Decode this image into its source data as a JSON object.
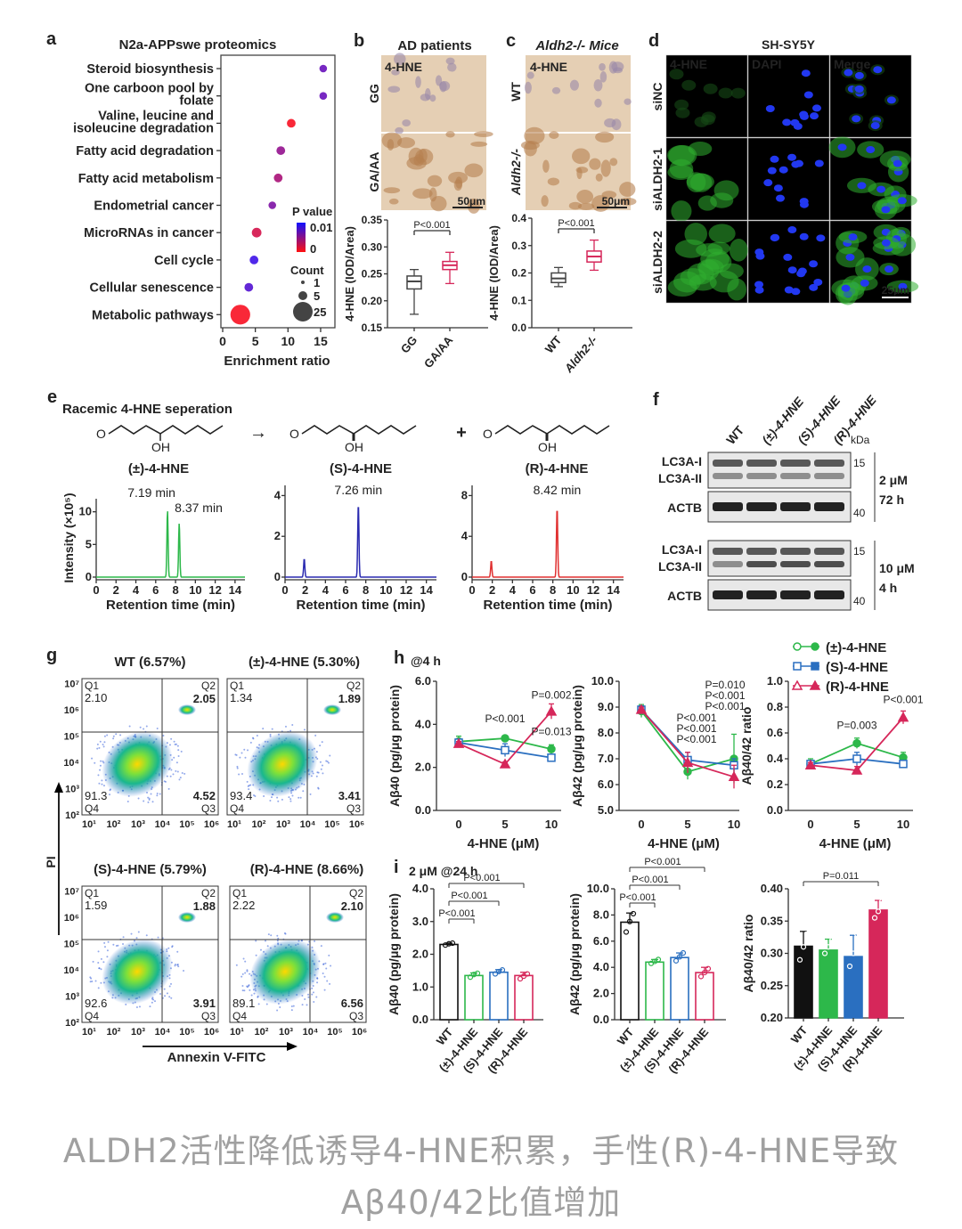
{
  "panel_letters": {
    "a": "a",
    "b": "b",
    "c": "c",
    "d": "d",
    "e": "e",
    "f": "f",
    "g": "g",
    "h": "h",
    "i": "i"
  },
  "panel_a": {
    "title": "N2a-APPswe proteomics",
    "legend_p_title": "P value",
    "legend_p_hi": "0.01",
    "legend_p_lo": "0",
    "legend_count_title": "Count",
    "legend_counts": [
      "1",
      "5",
      "25"
    ]
  },
  "panel_b": {
    "title": "AD patients",
    "stain": "4-HNE",
    "row_labels": [
      "GG",
      "GA/AA"
    ],
    "scale": "50μm"
  },
  "panel_c": {
    "title": "Aldh2-/- Mice",
    "stain": "4-HNE",
    "row_labels": [
      "WT",
      "Aldh2-/-"
    ],
    "scale": "50μm"
  },
  "panel_d": {
    "title": "SH-SY5Y",
    "columns": [
      "4-HNE",
      "DAPI",
      "Merge"
    ],
    "rows": [
      "siNC",
      "siALDH2-1",
      "siALDH2-2"
    ],
    "scale": "25μm",
    "column_colors": [
      "#22ee22",
      "#3355ff",
      "#ffffff"
    ]
  },
  "panel_e": {
    "title": "Racemic 4-HNE seperation",
    "arrow": "→",
    "plus": "+",
    "atom_o": "O",
    "atom_oh": "OH"
  },
  "panel_f": {
    "lanes": [
      "WT",
      "(±)-4-HNE",
      "(S)-4-HNE",
      "(R)-4-HNE"
    ],
    "kda": "kDa",
    "blocks": [
      {
        "bands": [
          "LC3A-I",
          "LC3A-II"
        ],
        "ctrl": "ACTB",
        "mw": [
          "15",
          "40"
        ],
        "dose": "2 μM",
        "time": "72 h"
      },
      {
        "bands": [
          "LC3A-I",
          "LC3A-II"
        ],
        "ctrl": "ACTB",
        "mw": [
          "15",
          "40"
        ],
        "dose": "10 μM",
        "time": "4 h"
      }
    ]
  },
  "panel_g": {
    "ylabel": "PI",
    "xlabel": "Annexin V-FITC",
    "xticks": [
      "10¹",
      "10²",
      "10³",
      "10⁴",
      "10⁵",
      "10⁶"
    ],
    "yticks": [
      "10²",
      "10³",
      "10⁴",
      "10⁵",
      "10⁶",
      "10⁷"
    ],
    "plots": [
      {
        "title": "WT (6.57%)",
        "q1": "2.10",
        "q2": "2.05",
        "q3": "4.52",
        "q4": "91.3"
      },
      {
        "title": "(±)-4-HNE (5.30%)",
        "q1": "1.34",
        "q2": "1.89",
        "q3": "3.41",
        "q4": "93.4"
      },
      {
        "title": "(S)-4-HNE (5.79%)",
        "q1": "1.59",
        "q2": "1.88",
        "q3": "3.91",
        "q4": "92.6"
      },
      {
        "title": "(R)-4-HNE (8.66%)",
        "q1": "2.22",
        "q2": "2.10",
        "q3": "6.56",
        "q4": "89.1"
      }
    ],
    "quadrant_names": [
      "Q1",
      "Q2",
      "Q3",
      "Q4"
    ]
  },
  "panel_h": {
    "subtitle": "@4 h",
    "legend": [
      "(±)-4-HNE",
      "(S)-4-HNE",
      "(R)-4-HNE"
    ]
  },
  "panel_i": {
    "subtitle": "2 μM @24 h"
  },
  "colors": {
    "racemic": "#2db84a",
    "S": "#2a6fc0",
    "R": "#d6275a",
    "black": "#111111",
    "red_text": "#e01010"
  },
  "caption": {
    "line1": "ALDH2活性降低诱导4-HNE积累，手性(R)-4-HNE导致",
    "line2": "Aβ40/42比值增加"
  },
  "chart_data": [
    {
      "id": "a",
      "type": "scatter",
      "title": "N2a-APPswe proteomics",
      "xlabel": "Enrichment ratio",
      "xlim": [
        0,
        17
      ],
      "xticks": [
        0,
        5,
        10,
        15
      ],
      "categories": [
        "Steroid biosynthesis",
        "One carboon pool by folate",
        "Valine, leucine and isoleucine degradation",
        "Fatty acid degradation",
        "Fatty acid metabolism",
        "Endometrial cancer",
        "MicroRNAs in cancer",
        "Cell cycle",
        "Cellular senescence",
        "Metabolic pathways"
      ],
      "enrichment": [
        15.4,
        15.4,
        10.5,
        8.9,
        8.5,
        7.6,
        5.2,
        4.8,
        4.0,
        2.7
      ],
      "p_value": [
        0.007,
        0.007,
        0.0003,
        0.005,
        0.004,
        0.006,
        0.002,
        0.009,
        0.008,
        0.0003
      ],
      "count": [
        2,
        2,
        3,
        3,
        3,
        2,
        4,
        3,
        3,
        25
      ]
    },
    {
      "id": "b",
      "type": "box",
      "ylabel": "4-HNE (IOD/Area)",
      "ylim": [
        0.15,
        0.35
      ],
      "yticks": [
        "0.15",
        "0.20",
        "0.25",
        "0.30",
        "0.35"
      ],
      "annotation": "P<0.001",
      "categories": [
        "GG",
        "GA/AA"
      ],
      "colors": [
        "#444444",
        "#d6275a"
      ],
      "boxes": [
        {
          "min": 0.175,
          "q1": 0.222,
          "median": 0.236,
          "q3": 0.246,
          "max": 0.258
        },
        {
          "min": 0.232,
          "q1": 0.258,
          "median": 0.266,
          "q3": 0.273,
          "max": 0.29
        }
      ]
    },
    {
      "id": "c",
      "type": "box",
      "ylabel": "4-HNE (IOD/Area)",
      "ylim": [
        0,
        0.4
      ],
      "yticks": [
        "0.0",
        "0.1",
        "0.2",
        "0.3",
        "0.4"
      ],
      "annotation": "P<0.001",
      "categories": [
        "WT",
        "Aldh2-/-"
      ],
      "colors": [
        "#444444",
        "#d6275a"
      ],
      "boxes": [
        {
          "min": 0.15,
          "q1": 0.165,
          "median": 0.18,
          "q3": 0.2,
          "max": 0.22
        },
        {
          "min": 0.21,
          "q1": 0.24,
          "median": 0.26,
          "q3": 0.28,
          "max": 0.32
        }
      ]
    },
    {
      "id": "e1",
      "type": "line",
      "name": "(±)-4-HNE",
      "xlabel": "Retention time (min)",
      "ylabel": "Intensity (×10⁵)",
      "xlim": [
        0,
        15
      ],
      "ylim": [
        0,
        12
      ],
      "xticks": [
        0,
        2,
        4,
        6,
        8,
        10,
        12,
        14
      ],
      "yticks": [
        0,
        5,
        10
      ],
      "peaks": [
        {
          "t": 7.19,
          "h": 10.2,
          "label": "7.19 min"
        },
        {
          "t": 8.37,
          "h": 8.3,
          "label": "8.37 min"
        }
      ],
      "color": "#2db84a"
    },
    {
      "id": "e2",
      "type": "line",
      "name": "(S)-4-HNE",
      "xlabel": "Retention time (min)",
      "xlim": [
        0,
        15
      ],
      "ylim": [
        0,
        4.5
      ],
      "xticks": [
        0,
        2,
        4,
        6,
        8,
        10,
        12,
        14
      ],
      "yticks": [
        0,
        2,
        4
      ],
      "peaks": [
        {
          "t": 1.9,
          "h": 0.9,
          "label": ""
        },
        {
          "t": 7.26,
          "h": 3.6,
          "label": "7.26 min"
        }
      ],
      "color": "#2a2ab0"
    },
    {
      "id": "e3",
      "type": "line",
      "name": "(R)-4-HNE",
      "xlabel": "Retention time (min)",
      "xlim": [
        0,
        15
      ],
      "ylim": [
        0,
        9
      ],
      "xticks": [
        0,
        2,
        4,
        6,
        8,
        10,
        12,
        14
      ],
      "yticks": [
        0,
        4,
        8
      ],
      "peaks": [
        {
          "t": 1.9,
          "h": 1.6,
          "label": ""
        },
        {
          "t": 8.42,
          "h": 6.8,
          "label": "8.42 min"
        }
      ],
      "color": "#e03030"
    },
    {
      "id": "h1",
      "type": "line",
      "ylabel": "Aβ40 (pg/μg protein)",
      "xlabel": "4-HNE (μM)",
      "x": [
        0,
        5,
        10
      ],
      "ylim": [
        0,
        6
      ],
      "yticks": [
        "0.0",
        "2.0",
        "4.0",
        "6.0"
      ],
      "series": [
        {
          "name": "(±)-4-HNE",
          "values": [
            3.2,
            3.35,
            2.85
          ],
          "err": [
            0.25,
            0.08,
            0.2
          ]
        },
        {
          "name": "(S)-4-HNE",
          "values": [
            3.15,
            2.8,
            2.45
          ],
          "err": [
            0.15,
            0.3,
            0.12
          ]
        },
        {
          "name": "(R)-4-HNE",
          "values": [
            3.1,
            2.15,
            4.6
          ],
          "err": [
            0.1,
            0.1,
            0.35
          ]
        }
      ],
      "annotations": [
        {
          "text": "P<0.001",
          "series": 2,
          "xi": 1,
          "dy": 4.1
        },
        {
          "text": "P=0.002",
          "series": 2,
          "xi": 2,
          "dy": 5.2
        },
        {
          "text": "P=0.013",
          "series": 1,
          "xi": 2,
          "dy": 3.5
        }
      ]
    },
    {
      "id": "h2",
      "type": "line",
      "ylabel": "Aβ42 (pg/μg protein)",
      "xlabel": "4-HNE (μM)",
      "x": [
        0,
        5,
        10
      ],
      "ylim": [
        5,
        10
      ],
      "yticks": [
        "5.0",
        "6.0",
        "7.0",
        "8.0",
        "9.0",
        "10.0"
      ],
      "series": [
        {
          "name": "(±)-4-HNE",
          "values": [
            8.85,
            6.5,
            7.0
          ],
          "err": [
            0.25,
            0.3,
            0.95
          ]
        },
        {
          "name": "(S)-4-HNE",
          "values": [
            8.9,
            6.95,
            6.75
          ],
          "err": [
            0.15,
            0.3,
            0.25
          ]
        },
        {
          "name": "(R)-4-HNE",
          "values": [
            8.9,
            6.85,
            6.3
          ],
          "err": [
            0.1,
            0.4,
            0.45
          ]
        }
      ],
      "annotations_stack": [
        [
          "P<0.001",
          "P<0.001",
          "P<0.001"
        ],
        [
          "P<0.001",
          "P<0.001",
          "P=0.010"
        ]
      ]
    },
    {
      "id": "h3",
      "type": "line",
      "ylabel": "Aβ40/42 ratio",
      "xlabel": "4-HNE (μM)",
      "x": [
        0,
        5,
        10
      ],
      "ylim": [
        0,
        1
      ],
      "yticks": [
        "0.0",
        "0.2",
        "0.4",
        "0.6",
        "0.8",
        "1.0"
      ],
      "series": [
        {
          "name": "(±)-4-HNE",
          "values": [
            0.36,
            0.52,
            0.41
          ],
          "err": [
            0.04,
            0.04,
            0.04
          ]
        },
        {
          "name": "(S)-4-HNE",
          "values": [
            0.36,
            0.4,
            0.36
          ],
          "err": [
            0.02,
            0.05,
            0.02
          ]
        },
        {
          "name": "(R)-4-HNE",
          "values": [
            0.35,
            0.31,
            0.72
          ],
          "err": [
            0.02,
            0.03,
            0.05
          ]
        }
      ],
      "annotations": [
        {
          "text": "P=0.003",
          "series": 0,
          "xi": 1,
          "dy": 0.63
        },
        {
          "text": "P<0.001",
          "series": 2,
          "xi": 2,
          "dy": 0.83
        }
      ]
    },
    {
      "id": "i1",
      "type": "bar",
      "ylabel": "Aβ40 (pg/μg protein)",
      "categories": [
        "WT",
        "(±)-4-HNE",
        "(S)-4-HNE",
        "(R)-4-HNE"
      ],
      "values": [
        2.3,
        1.35,
        1.45,
        1.35
      ],
      "err": [
        0.04,
        0.08,
        0.08,
        0.1
      ],
      "points": [
        [
          2.28,
          2.32,
          2.34
        ],
        [
          1.3,
          1.38,
          1.42
        ],
        [
          1.4,
          1.47,
          1.52
        ],
        [
          1.25,
          1.33,
          1.4
        ]
      ],
      "ylim": [
        0,
        4
      ],
      "yticks": [
        "0.0",
        "1.0",
        "2.0",
        "3.0",
        "4.0"
      ],
      "filled": false,
      "brackets": [
        {
          "to": 1,
          "text": "P<0.001"
        },
        {
          "to": 2,
          "text": "P<0.001"
        },
        {
          "to": 3,
          "text": "P<0.001"
        }
      ]
    },
    {
      "id": "i2",
      "type": "bar",
      "ylabel": "Aβ42 (pg/μg protein)",
      "categories": [
        "WT",
        "(±)-4-HNE",
        "(S)-4-HNE",
        "(R)-4-HNE"
      ],
      "values": [
        7.45,
        4.4,
        4.75,
        3.6
      ],
      "err": [
        0.7,
        0.2,
        0.35,
        0.4
      ],
      "points": [
        [
          6.7,
          7.5,
          8.1
        ],
        [
          4.3,
          4.45,
          4.6
        ],
        [
          4.5,
          4.8,
          5.1
        ],
        [
          3.3,
          3.6,
          3.9
        ]
      ],
      "ylim": [
        0,
        10
      ],
      "yticks": [
        "0.0",
        "2.0",
        "4.0",
        "6.0",
        "8.0",
        "10.0"
      ],
      "filled": false,
      "brackets": [
        {
          "to": 1,
          "text": "P<0.001"
        },
        {
          "to": 2,
          "text": "P<0.001"
        },
        {
          "to": 3,
          "text": "P<0.001"
        }
      ]
    },
    {
      "id": "i3",
      "type": "bar",
      "ylabel": "Aβ40/42 ratio",
      "categories": [
        "WT",
        "(±)-4-HNE",
        "(S)-4-HNE",
        "(R)-4-HNE"
      ],
      "values": [
        0.311,
        0.305,
        0.295,
        0.367
      ],
      "err": [
        0.023,
        0.017,
        0.033,
        0.015
      ],
      "points": [
        [
          0.29,
          0.31,
          0.33
        ],
        [
          0.3,
          0.31,
          0.32
        ],
        [
          0.28,
          0.3,
          0.33
        ],
        [
          0.355,
          0.365,
          0.38
        ]
      ],
      "ylim": [
        0.2,
        0.4
      ],
      "yticks": [
        "0.20",
        "0.25",
        "0.30",
        "0.35",
        "0.40"
      ],
      "filled": true,
      "brackets": [
        {
          "to": 3,
          "text": "P=0.011"
        }
      ]
    }
  ]
}
